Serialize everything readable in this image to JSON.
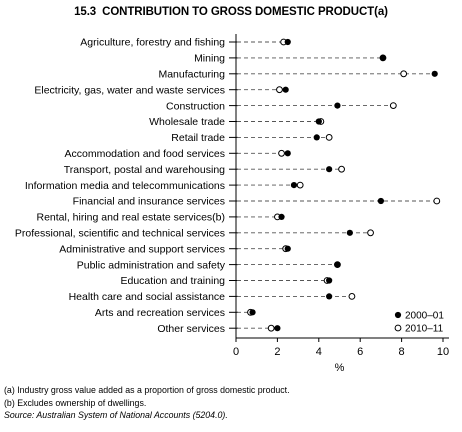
{
  "figure": {
    "number": "15.3",
    "title": "CONTRIBUTION TO GROSS DOMESTIC PRODUCT(a)",
    "footnotes": [
      "(a) Industry gross value added as a proportion of gross domestic product.",
      "(b) Excludes ownership of dwellings."
    ],
    "source": "Source: Australian System of National Accounts (5204.0)."
  },
  "chart_data": {
    "type": "scatter",
    "orientation": "horizontal dot plot",
    "categories": [
      "Agriculture, forestry and fishing",
      "Mining",
      "Manufacturing",
      "Electricity, gas, water and waste services",
      "Construction",
      "Wholesale trade",
      "Retail trade",
      "Accommodation and food services",
      "Transport, postal and warehousing",
      "Information media and telecommunications",
      "Financial and insurance services",
      "Rental, hiring and real estate services(b)",
      "Professional, scientific and technical services",
      "Administrative and support services",
      "Public administration and safety",
      "Education and training",
      "Health care and social assistance",
      "Arts and recreation services",
      "Other services"
    ],
    "series": [
      {
        "name": "2000–01",
        "marker": "filled",
        "values": [
          2.5,
          7.1,
          9.6,
          2.4,
          4.9,
          4.0,
          3.9,
          2.5,
          4.5,
          2.8,
          7.0,
          2.2,
          5.5,
          2.5,
          4.9,
          4.5,
          4.5,
          0.8,
          2.0
        ]
      },
      {
        "name": "2010–11",
        "marker": "open",
        "values": [
          2.3,
          7.1,
          8.1,
          2.1,
          7.6,
          4.1,
          4.5,
          2.2,
          5.1,
          3.1,
          9.7,
          2.0,
          6.5,
          2.4,
          4.9,
          4.4,
          5.6,
          0.7,
          1.7
        ]
      }
    ],
    "xlabel": "%",
    "xlim": [
      0,
      10
    ],
    "xticks": [
      0,
      2,
      4,
      6,
      8,
      10
    ],
    "legend_position": "bottom-right",
    "grid": false
  }
}
